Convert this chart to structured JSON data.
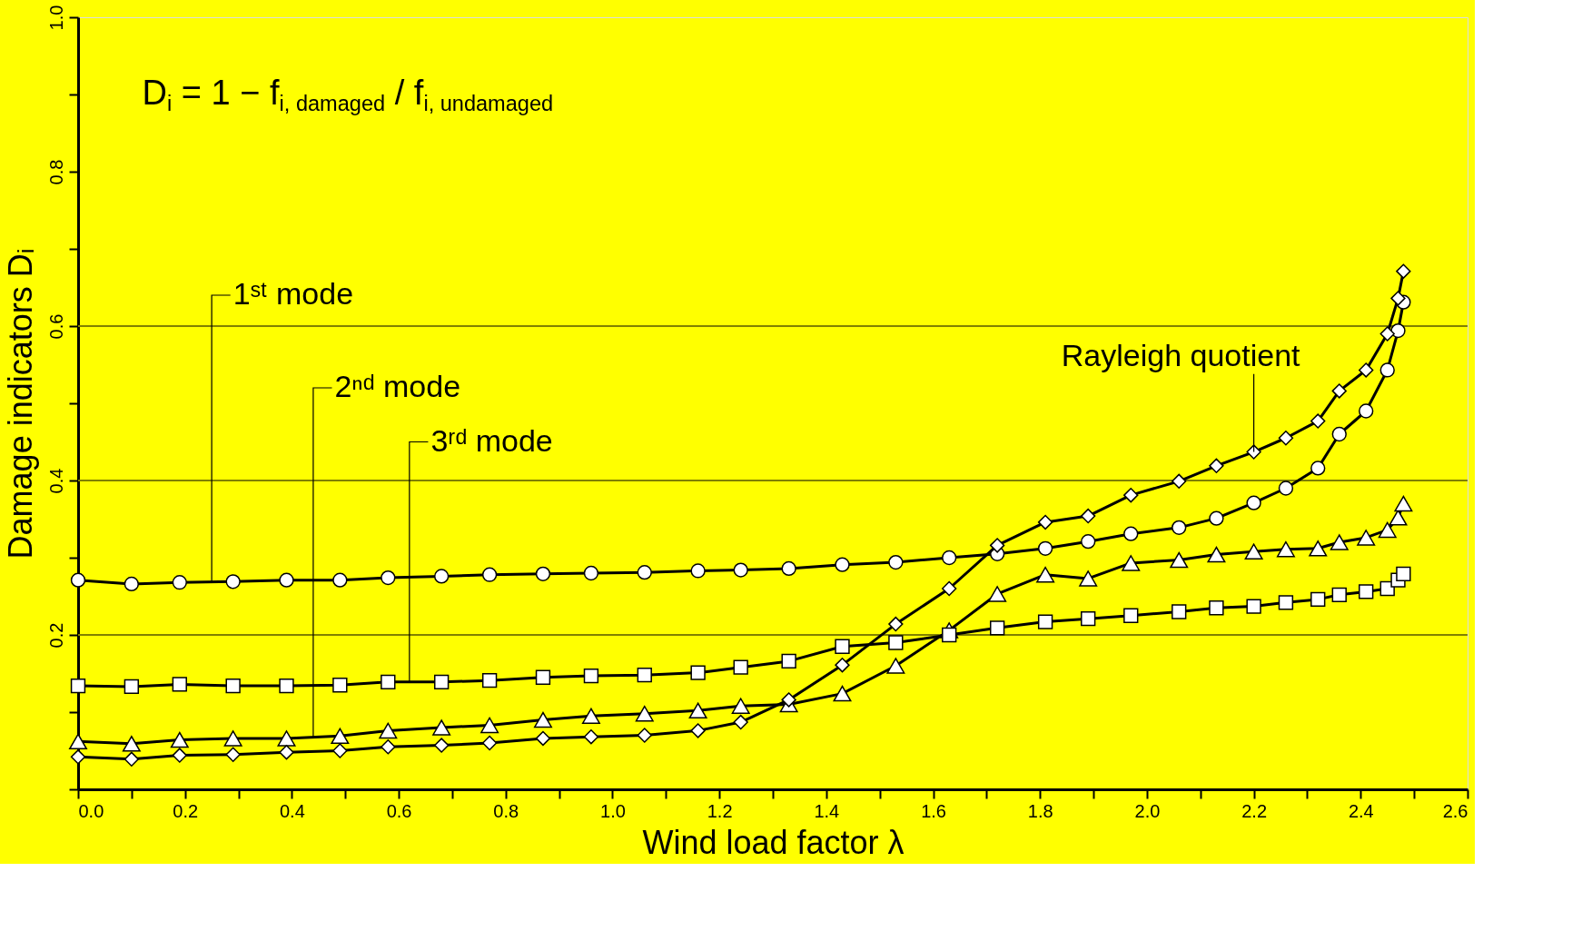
{
  "chart_data": {
    "type": "line",
    "xlabel": "Wind load factor λ",
    "ylabel": "Damage indicators Dᵢ",
    "x": [
      0,
      0.1,
      0.19,
      0.29,
      0.39,
      0.49,
      0.58,
      0.68,
      0.77,
      0.87,
      0.96,
      1.06,
      1.16,
      1.24,
      1.33,
      1.43,
      1.53,
      1.63,
      1.72,
      1.81,
      1.89,
      1.97,
      2.06,
      2.13,
      2.2,
      2.26,
      2.32,
      2.36,
      2.41,
      2.45,
      2.47,
      2.48
    ],
    "series": [
      {
        "name": "1ˢᵗ mode",
        "color": "#000000",
        "marker": "circle",
        "values": [
          0.271,
          0.266,
          0.268,
          0.269,
          0.271,
          0.271,
          0.274,
          0.276,
          0.278,
          0.279,
          0.28,
          0.281,
          0.283,
          0.284,
          0.286,
          0.291,
          0.294,
          0.3,
          0.305,
          0.312,
          0.321,
          0.331,
          0.339,
          0.351,
          0.371,
          0.39,
          0.416,
          0.46,
          0.49,
          0.543,
          0.594,
          0.631
        ]
      },
      {
        "name": "2ⁿᵈ mode",
        "color": "#000000",
        "marker": "triangle",
        "values": [
          0.062,
          0.059,
          0.064,
          0.066,
          0.066,
          0.069,
          0.076,
          0.08,
          0.083,
          0.09,
          0.095,
          0.098,
          0.102,
          0.108,
          0.11,
          0.124,
          0.16,
          0.206,
          0.253,
          0.278,
          0.273,
          0.293,
          0.297,
          0.304,
          0.308,
          0.311,
          0.312,
          0.32,
          0.326,
          0.336,
          0.352,
          0.37
        ]
      },
      {
        "name": "3ʳᵈ mode",
        "color": "#000000",
        "marker": "square",
        "values": [
          0.134,
          0.133,
          0.136,
          0.134,
          0.134,
          0.135,
          0.139,
          0.139,
          0.141,
          0.145,
          0.147,
          0.148,
          0.151,
          0.158,
          0.166,
          0.185,
          0.19,
          0.2,
          0.209,
          0.217,
          0.221,
          0.225,
          0.23,
          0.235,
          0.237,
          0.242,
          0.246,
          0.252,
          0.256,
          0.26,
          0.271,
          0.279
        ]
      },
      {
        "name": "Rayleigh quotient",
        "color": "#000000",
        "marker": "diamond",
        "values": [
          0.042,
          0.039,
          0.044,
          0.045,
          0.048,
          0.05,
          0.055,
          0.057,
          0.06,
          0.066,
          0.068,
          0.07,
          0.076,
          0.087,
          0.116,
          0.161,
          0.214,
          0.26,
          0.316,
          0.346,
          0.354,
          0.381,
          0.399,
          0.419,
          0.437,
          0.455,
          0.477,
          0.516,
          0.543,
          0.59,
          0.636,
          0.671
        ]
      }
    ],
    "xlim": [
      0,
      2.6
    ],
    "ylim": [
      0,
      1.0
    ],
    "xticks": [
      {
        "value": 0,
        "label": "0.0"
      },
      {
        "value": 0.1,
        "label": null
      },
      0.2,
      {
        "value": 0.3,
        "label": null
      },
      0.4,
      {
        "value": 0.5,
        "label": null
      },
      0.6,
      {
        "value": 0.7,
        "label": null
      },
      0.8,
      {
        "value": 0.9,
        "label": null
      },
      {
        "value": 1.0,
        "label": "1.0"
      },
      {
        "value": 1.1,
        "label": null
      },
      1.2,
      {
        "value": 1.3,
        "label": null
      },
      1.4,
      {
        "value": 1.5,
        "label": null
      },
      1.6,
      {
        "value": 1.7,
        "label": null
      },
      1.8,
      {
        "value": 1.9,
        "label": null
      },
      {
        "value": 2.0,
        "label": "2.0"
      },
      {
        "value": 2.1,
        "label": null
      },
      2.2,
      {
        "value": 2.3,
        "label": null
      },
      2.4,
      {
        "value": 2.5,
        "label": null
      },
      2.6
    ],
    "yticks": [
      {
        "value": 0,
        "label": null
      },
      {
        "value": 0.1,
        "label": null
      },
      0.2,
      {
        "value": 0.3,
        "label": null
      },
      0.4,
      {
        "value": 0.5,
        "label": null
      },
      0.6,
      {
        "value": 0.7,
        "label": null
      },
      0.8,
      {
        "value": 0.9,
        "label": null
      },
      {
        "value": 1.0,
        "label": "1.0"
      }
    ],
    "ref_lines": [
      {
        "axis": "y",
        "value": 0.2,
        "color": "#808000"
      },
      {
        "axis": "y",
        "value": 0.4,
        "color": "#808000"
      },
      {
        "axis": "y",
        "value": 0.6,
        "color": "#808000"
      }
    ],
    "annotations": [
      "D$_{i}$ = 1 − f$_{i, damaged}$ / f$_{i, undamaged}$"
    ],
    "grid": false,
    "legend": false,
    "line_style": "solid"
  }
}
